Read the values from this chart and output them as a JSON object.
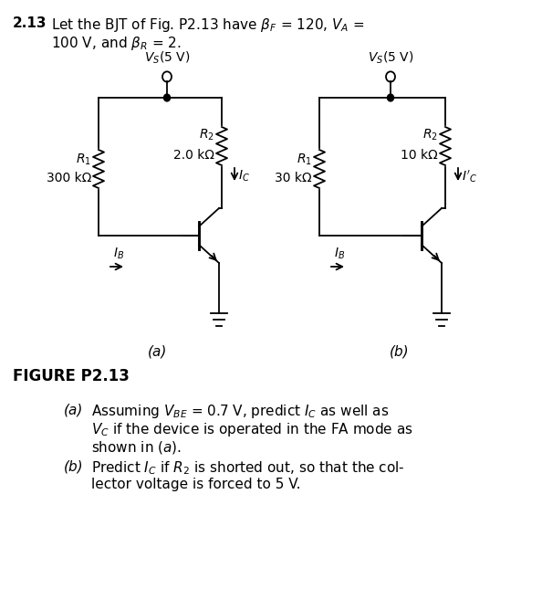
{
  "bg_color": "#ffffff",
  "line_color": "#000000",
  "fig_width": 5.94,
  "fig_height": 6.68,
  "dpi": 100,
  "title_bold": "2.13",
  "title_rest": " Let the BJT of Fig. P2.13 have β",
  "title_rest2": " = 120, V",
  "title_line2": "       100 V, and β",
  "title_line2b": " = 2.",
  "fig_label": "FIGURE P2.13",
  "vs_label": "$V_S$(5 V)",
  "r1a_label": "$R_1$",
  "r1a_val": "300 kΩ",
  "r2a_label": "$R_2$",
  "r2a_val": "2.0 kΩ",
  "ic_a_label": "$I_C$",
  "ib_label": "$I_B$",
  "label_a": "(a)",
  "r1b_label": "$R_1$",
  "r1b_val": "30 kΩ",
  "r2b_label": "$R_2$",
  "r2b_val": "10 kΩ",
  "ic_b_label": "$I'_C$",
  "label_b": "(b)"
}
